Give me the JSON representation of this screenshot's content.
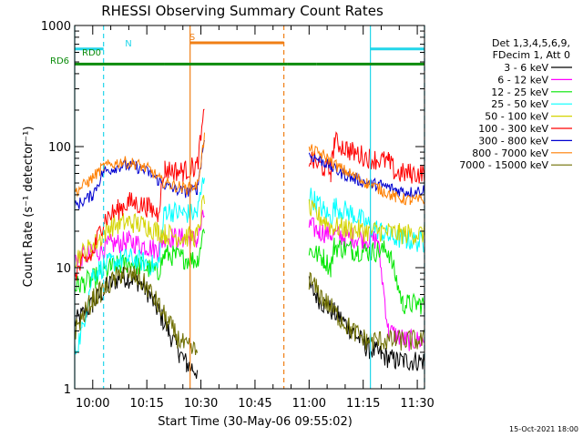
{
  "chart_data": {
    "type": "line",
    "title": "RHESSI Observing Summary Count Rates",
    "xlabel": "Start Time (30-May-06 09:55:02)",
    "ylabel": "Count Rate (s⁻¹ detector⁻¹)",
    "y_scale": "log",
    "ylim": [
      1,
      1000
    ],
    "xlim": [
      "09:55",
      "11:32"
    ],
    "x_ticks": [
      "10:00",
      "10:15",
      "10:30",
      "10:45",
      "11:00",
      "11:15",
      "11:30"
    ],
    "y_ticks": [
      "1",
      "10",
      "100",
      "1000"
    ],
    "footer": "15-Oct-2021 18:00",
    "legend_header": [
      "Det 1,3,4,5,6,9,",
      "FDecim 1, Att 0"
    ],
    "gap": [
      "10:34",
      "10:57"
    ],
    "markers": [
      {
        "label": "N",
        "color": "#22d6ea",
        "bars": [
          [
            "09:55",
            "10:03"
          ],
          [
            "11:17",
            "11:32"
          ]
        ],
        "level": 640,
        "lines": [
          [
            "09:55",
            "solid"
          ],
          [
            "10:03",
            "dashed"
          ],
          [
            "11:17",
            "solid"
          ],
          [
            "11:32",
            "dashed"
          ]
        ]
      },
      {
        "label": "S",
        "color": "#f07f16",
        "bars": [
          [
            "10:27",
            "10:53"
          ]
        ],
        "level": 720,
        "lines": [
          [
            "10:27",
            "solid"
          ],
          [
            "10:53",
            "dashed"
          ]
        ]
      },
      {
        "label": "RD0",
        "color": "#0d8c0d",
        "bars": [],
        "level": 0,
        "lines": []
      },
      {
        "label": "RD6",
        "color": "#0d8c0d",
        "bars": [
          [
            "09:55",
            "10:20"
          ],
          [
            "10:20",
            "10:54"
          ],
          [
            "10:54",
            "11:02"
          ],
          [
            "11:02",
            "11:32"
          ]
        ],
        "level": 480,
        "lines": []
      }
    ],
    "series": [
      {
        "name": "3 - 6 keV",
        "color": "#000000",
        "points": [
          [
            "09:55",
            3.5
          ],
          [
            "10:00",
            5
          ],
          [
            "10:04",
            7
          ],
          [
            "10:08",
            8.5
          ],
          [
            "10:12",
            8
          ],
          [
            "10:15",
            6.5
          ],
          [
            "10:18",
            4.5
          ],
          [
            "10:21",
            3
          ],
          [
            "10:24",
            2
          ],
          [
            "10:26",
            1.6
          ],
          [
            "10:29",
            1.4
          ],
          [
            "11:00",
            7
          ],
          [
            "11:04",
            5
          ],
          [
            "11:08",
            4
          ],
          [
            "11:12",
            3
          ],
          [
            "11:16",
            2.2
          ],
          [
            "11:20",
            1.9
          ],
          [
            "11:24",
            1.7
          ],
          [
            "11:28",
            1.7
          ],
          [
            "11:32",
            1.7
          ]
        ]
      },
      {
        "name": "6 - 12 keV",
        "color": "#ff00ff",
        "points": [
          [
            "09:55",
            12
          ],
          [
            "10:00",
            13
          ],
          [
            "10:05",
            15.5
          ],
          [
            "10:10",
            16.5
          ],
          [
            "10:15",
            15
          ],
          [
            "10:18",
            14
          ],
          [
            "10:20",
            18
          ],
          [
            "10:25",
            17.5
          ],
          [
            "10:29",
            17
          ],
          [
            "10:31",
            28
          ],
          [
            "11:00",
            22
          ],
          [
            "11:03",
            20
          ],
          [
            "11:06",
            19
          ],
          [
            "11:10",
            18
          ],
          [
            "11:15",
            17.5
          ],
          [
            "11:19",
            17
          ],
          [
            "11:22",
            3
          ],
          [
            "11:27",
            2.5
          ],
          [
            "11:32",
            2.5
          ]
        ]
      },
      {
        "name": "12 - 25 keV",
        "color": "#00e600",
        "points": [
          [
            "09:55",
            7
          ],
          [
            "10:00",
            8
          ],
          [
            "10:05",
            10
          ],
          [
            "10:10",
            11
          ],
          [
            "10:15",
            10
          ],
          [
            "10:18",
            9
          ],
          [
            "10:20",
            13
          ],
          [
            "10:25",
            12
          ],
          [
            "10:29",
            11.5
          ],
          [
            "10:31",
            22
          ],
          [
            "11:00",
            14
          ],
          [
            "11:04",
            12
          ],
          [
            "11:06",
            10
          ],
          [
            "11:07",
            15
          ],
          [
            "11:12",
            14
          ],
          [
            "11:17",
            13.5
          ],
          [
            "11:22",
            14
          ],
          [
            "11:26",
            5
          ],
          [
            "11:32",
            5
          ]
        ]
      },
      {
        "name": "25 - 50 keV",
        "color": "#00ffff",
        "points": [
          [
            "09:55",
            2
          ],
          [
            "09:57",
            3
          ],
          [
            "10:00",
            9
          ],
          [
            "10:05",
            11
          ],
          [
            "10:10",
            12
          ],
          [
            "10:15",
            11
          ],
          [
            "10:18",
            10
          ],
          [
            "10:20",
            30
          ],
          [
            "10:25",
            28
          ],
          [
            "10:29",
            28
          ],
          [
            "10:31",
            60
          ],
          [
            "11:00",
            40
          ],
          [
            "11:04",
            30
          ],
          [
            "11:06",
            25
          ],
          [
            "11:07",
            32
          ],
          [
            "11:12",
            28
          ],
          [
            "11:17",
            22
          ],
          [
            "11:20",
            20
          ],
          [
            "11:22",
            18
          ],
          [
            "11:27",
            17
          ],
          [
            "11:32",
            16
          ]
        ]
      },
      {
        "name": "50 - 100 keV",
        "color": "#d4d400",
        "points": [
          [
            "09:55",
            12
          ],
          [
            "10:00",
            15
          ],
          [
            "10:05",
            22
          ],
          [
            "10:10",
            24
          ],
          [
            "10:15",
            22
          ],
          [
            "10:18",
            20
          ],
          [
            "10:20",
            19
          ],
          [
            "10:25",
            18
          ],
          [
            "10:29",
            18
          ],
          [
            "10:31",
            40
          ],
          [
            "11:00",
            30
          ],
          [
            "11:04",
            25
          ],
          [
            "11:06",
            22
          ],
          [
            "11:10",
            21
          ],
          [
            "11:15",
            20
          ],
          [
            "11:20",
            20
          ],
          [
            "11:25",
            19
          ],
          [
            "11:32",
            19
          ]
        ]
      },
      {
        "name": "100 - 300 keV",
        "color": "#ff0000",
        "points": [
          [
            "09:55",
            9
          ],
          [
            "10:00",
            13
          ],
          [
            "10:03",
            25
          ],
          [
            "10:07",
            30
          ],
          [
            "10:10",
            35
          ],
          [
            "10:15",
            32
          ],
          [
            "10:18",
            28
          ],
          [
            "10:20",
            65
          ],
          [
            "10:25",
            62
          ],
          [
            "10:29",
            70
          ],
          [
            "10:31",
            190
          ],
          [
            "11:00",
            80
          ],
          [
            "11:03",
            70
          ],
          [
            "11:06",
            62
          ],
          [
            "11:07",
            110
          ],
          [
            "11:12",
            90
          ],
          [
            "11:17",
            80
          ],
          [
            "11:22",
            75
          ],
          [
            "11:24",
            60
          ],
          [
            "11:28",
            60
          ],
          [
            "11:32",
            60
          ]
        ]
      },
      {
        "name": "300 - 800 keV",
        "color": "#0000d0",
        "points": [
          [
            "09:55",
            32
          ],
          [
            "10:00",
            40
          ],
          [
            "10:03",
            62
          ],
          [
            "10:08",
            70
          ],
          [
            "10:12",
            68
          ],
          [
            "10:16",
            60
          ],
          [
            "10:19",
            50
          ],
          [
            "10:22",
            45
          ],
          [
            "10:26",
            42
          ],
          [
            "10:29",
            45
          ],
          [
            "10:31",
            120
          ],
          [
            "11:00",
            85
          ],
          [
            "11:04",
            75
          ],
          [
            "11:08",
            62
          ],
          [
            "11:12",
            55
          ],
          [
            "11:16",
            50
          ],
          [
            "11:20",
            48
          ],
          [
            "11:24",
            44
          ],
          [
            "11:28",
            42
          ],
          [
            "11:32",
            44
          ]
        ]
      },
      {
        "name": "800 - 7000 keV",
        "color": "#ff7f00",
        "points": [
          [
            "09:55",
            42
          ],
          [
            "09:59",
            52
          ],
          [
            "10:03",
            68
          ],
          [
            "10:08",
            75
          ],
          [
            "10:12",
            72
          ],
          [
            "10:16",
            64
          ],
          [
            "10:19",
            52
          ],
          [
            "10:22",
            48
          ],
          [
            "10:26",
            45
          ],
          [
            "10:29",
            48
          ],
          [
            "10:31",
            120
          ],
          [
            "11:00",
            95
          ],
          [
            "11:04",
            85
          ],
          [
            "11:08",
            68
          ],
          [
            "11:12",
            58
          ],
          [
            "11:16",
            50
          ],
          [
            "11:20",
            44
          ],
          [
            "11:24",
            38
          ],
          [
            "11:28",
            36
          ],
          [
            "11:32",
            36
          ]
        ]
      },
      {
        "name": "7000 - 15000 keV",
        "color": "#6e6e00",
        "points": [
          [
            "09:55",
            3
          ],
          [
            "10:00",
            5.5
          ],
          [
            "10:04",
            7
          ],
          [
            "10:08",
            9
          ],
          [
            "10:12",
            8.5
          ],
          [
            "10:15",
            7
          ],
          [
            "10:18",
            5
          ],
          [
            "10:21",
            3.5
          ],
          [
            "10:24",
            2.5
          ],
          [
            "10:26",
            2.2
          ],
          [
            "10:29",
            2
          ],
          [
            "11:00",
            8
          ],
          [
            "11:04",
            5.5
          ],
          [
            "11:08",
            4
          ],
          [
            "11:12",
            3
          ],
          [
            "11:16",
            2.5
          ],
          [
            "11:20",
            2.5
          ],
          [
            "11:24",
            2.5
          ],
          [
            "11:28",
            2.5
          ],
          [
            "11:32",
            2.5
          ]
        ]
      }
    ]
  }
}
